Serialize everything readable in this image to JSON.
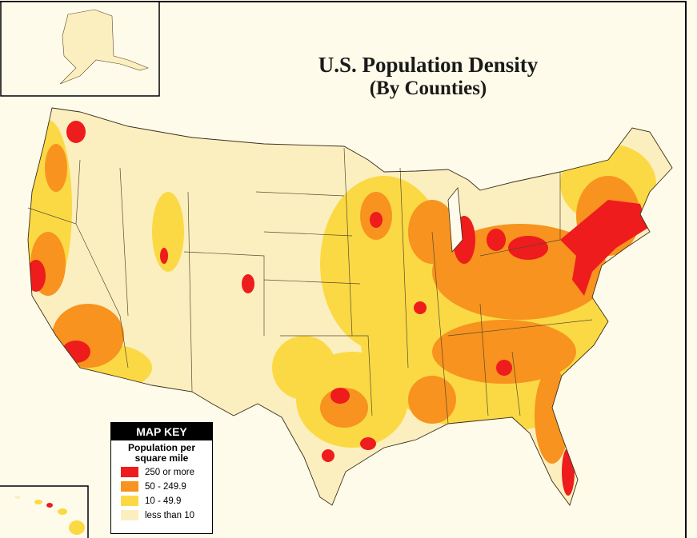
{
  "title": "U.S. Population Density",
  "subtitle": "(By Counties)",
  "legend": {
    "header": "MAP KEY",
    "title": "Population per square mile",
    "items": [
      {
        "label": "250 or more",
        "color": "#ee1c1c"
      },
      {
        "label": "50 - 249.9",
        "color": "#f7931e"
      },
      {
        "label": "10 - 49.9",
        "color": "#fbd944"
      },
      {
        "label": "less than 10",
        "color": "#fcefbf"
      }
    ]
  }
}
